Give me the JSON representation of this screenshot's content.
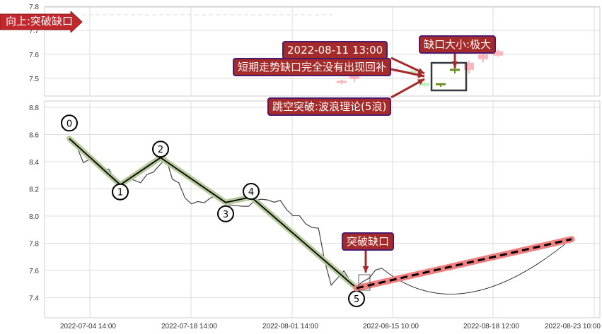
{
  "chart_data": [
    {
      "type": "candlestick",
      "panel": "top",
      "ylim": [
        7.42,
        7.8
      ],
      "yticks": [
        7.5,
        7.6,
        7.7,
        7.8
      ],
      "grid": true,
      "candles": [
        {
          "o": 7.49,
          "h": 7.495,
          "l": 7.475,
          "c": 7.488,
          "dir": "down"
        },
        {
          "o": 7.497,
          "h": 7.525,
          "l": 7.485,
          "c": 7.52,
          "dir": "down"
        },
        {
          "o": 7.53,
          "h": 7.55,
          "l": 7.52,
          "c": 7.535,
          "dir": "down",
          "faint": true
        },
        {
          "o": 7.53,
          "h": 7.54,
          "l": 7.52,
          "c": 7.525,
          "dir": "up",
          "faint": true
        },
        {
          "o": 7.47,
          "h": 7.485,
          "l": 7.465,
          "c": 7.48,
          "dir": "up",
          "faint": true
        },
        {
          "o": 7.475,
          "h": 7.48,
          "l": 7.465,
          "c": 7.48,
          "dir": "up"
        },
        {
          "o": 7.535,
          "h": 7.545,
          "l": 7.52,
          "c": 7.54,
          "dir": "up"
        },
        {
          "o": 7.535,
          "h": 7.575,
          "l": 7.52,
          "c": 7.565,
          "dir": "down"
        },
        {
          "o": 7.58,
          "h": 7.617,
          "l": 7.567,
          "c": 7.6,
          "dir": "down"
        },
        {
          "o": 7.595,
          "h": 7.62,
          "l": 7.59,
          "c": 7.614,
          "dir": "down"
        }
      ],
      "colors": {
        "up": "#6b8e23",
        "down": "#ffb6c1",
        "gap_box": "#333a40"
      }
    },
    {
      "type": "line",
      "panel": "bottom",
      "ylim": [
        7.28,
        8.85
      ],
      "yticks": [
        7.4,
        7.6,
        7.8,
        8.0,
        8.2,
        8.4,
        8.6,
        8.8
      ],
      "xtick_labels": [
        "2022-07-04 14:00",
        "2022-07-18 14:00",
        "2022-08-01 14:00",
        "2022-08-15 10:00",
        "2022-08-18 12:00",
        "2022-08-23 10:00"
      ],
      "grid": true,
      "price": [
        8.575,
        8.505,
        8.393,
        8.419,
        8.414,
        8.341,
        8.346,
        8.263,
        8.193,
        8.28,
        8.263,
        8.245,
        8.306,
        8.323,
        8.375,
        8.427,
        8.271,
        8.245,
        8.133,
        8.09,
        8.107,
        8.098,
        8.133,
        8.154,
        8.124,
        8.081,
        8.077,
        8.072,
        8.072,
        8.115,
        8.124,
        8.119,
        8.102,
        8.115,
        8.046,
        8.003,
        8.003,
        7.942,
        7.916,
        7.911,
        7.665,
        7.492,
        7.544,
        7.596,
        7.526,
        7.483,
        7.518,
        7.544,
        7.604,
        7.616
      ],
      "waves": [
        {
          "label": "0",
          "value": 8.57
        },
        {
          "label": "1",
          "value": 8.23
        },
        {
          "label": "2",
          "value": 8.43
        },
        {
          "label": "3",
          "value": 8.1
        },
        {
          "label": "4",
          "value": 8.14
        },
        {
          "label": "5",
          "value": 7.47
        }
      ],
      "projection": {
        "from": 7.47,
        "to": 7.83
      },
      "colors": {
        "price": "#444",
        "wave": "#000",
        "wave_glow": "#b5c99a",
        "projection": "#f08080",
        "projection_dash": "#000"
      }
    }
  ],
  "annotations": {
    "direction": "向上:突破缺口",
    "date": "2022-08-11 13:00",
    "gap_note": "短期走势缺口完全没有出现回补",
    "gap_size": "缺口大小:极大",
    "wave_theory": "跳空突破:波浪理论(5浪)",
    "breakout": "突破缺口"
  }
}
